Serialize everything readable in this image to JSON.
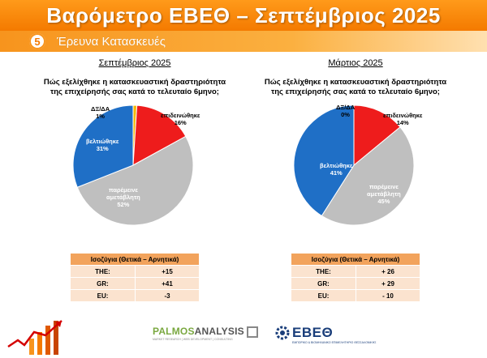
{
  "header": {
    "title": "Βαρόμετρο ΕΒΕΘ – Σεπτέμβριος 2025"
  },
  "section": {
    "number": "5",
    "title": "Έρευνα Κατασκευές"
  },
  "colors": {
    "improved": "#1f6fc6",
    "same": "#bfbfbf",
    "worsened": "#ee1c1c",
    "dk": "#f5b800",
    "orange": "#f47a00"
  },
  "chart_data": [
    {
      "type": "pie",
      "title": "Σεπτέμβριος 2025",
      "question_line1": "Πώς εξελίχθηκε η κατασκευαστική δραστηριότητα",
      "question_line2": "της επιχείρησής σας κατά το τελευταίο 6μηνο;",
      "slices": [
        {
          "label": "ΔΞ/ΔΑ",
          "value": 1,
          "value_text": "1%"
        },
        {
          "label": "επιδεινώθηκε",
          "value": 16,
          "value_text": "16%"
        },
        {
          "label": "παρέμεινε σταθερή",
          "label_l1": "παρέμεινε",
          "label_l2": "αμετάβλητη",
          "value": 52,
          "value_text": "52%"
        },
        {
          "label": "βελτιώθηκε",
          "value": 31,
          "value_text": "31%"
        }
      ],
      "balance": {
        "header": "Ισοζύγια (Θετικά – Αρνητικά)",
        "rows": [
          {
            "label": "THE:",
            "value": "+15"
          },
          {
            "label": "GR:",
            "value": "+41"
          },
          {
            "label": "EU:",
            "value": "-3"
          }
        ]
      }
    },
    {
      "type": "pie",
      "title": "Μάρτιος 2025",
      "question_line1": "Πώς εξελίχθηκε η κατασκευαστική δραστηριότητα",
      "question_line2": "της επιχείρησής σας κατά το τελευταίο 6μηνο;",
      "slices": [
        {
          "label": "ΔΞ/ΔΑ",
          "value": 0,
          "value_text": "0%"
        },
        {
          "label": "επιδεινώθηκε",
          "value": 14,
          "value_text": "14%"
        },
        {
          "label": "παρέμεινε σταθερή",
          "label_l1": "παρέμεινε",
          "label_l2": "αμετάβλητη",
          "value": 45,
          "value_text": "45%"
        },
        {
          "label": "βελτιώθηκε",
          "value": 41,
          "value_text": "41%"
        }
      ],
      "balance": {
        "header": "Ισοζύγια (Θετικά – Αρνητικά)",
        "rows": [
          {
            "label": "THE:",
            "value": "+ 26"
          },
          {
            "label": "GR:",
            "value": "+ 29"
          },
          {
            "label": "EU:",
            "value": "- 10"
          }
        ]
      }
    }
  ],
  "footer": {
    "palmos_a": "PALMOS",
    "palmos_b": "ANALYSIS",
    "palmos_sub": "MARKET RESEARCH | WEB DEVELOPMENT | CONSULTING",
    "ebeo": "ΕΒΕΘ",
    "ebeo_sub": "ΕΜΠΟΡΙΚΟ & ΒΙΟΜΗΧΑΝΙΚΟ ΕΠΙΜΕΛΗΤΗΡΙΟ ΘΕΣΣΑΛΟΝΙΚΗΣ"
  }
}
